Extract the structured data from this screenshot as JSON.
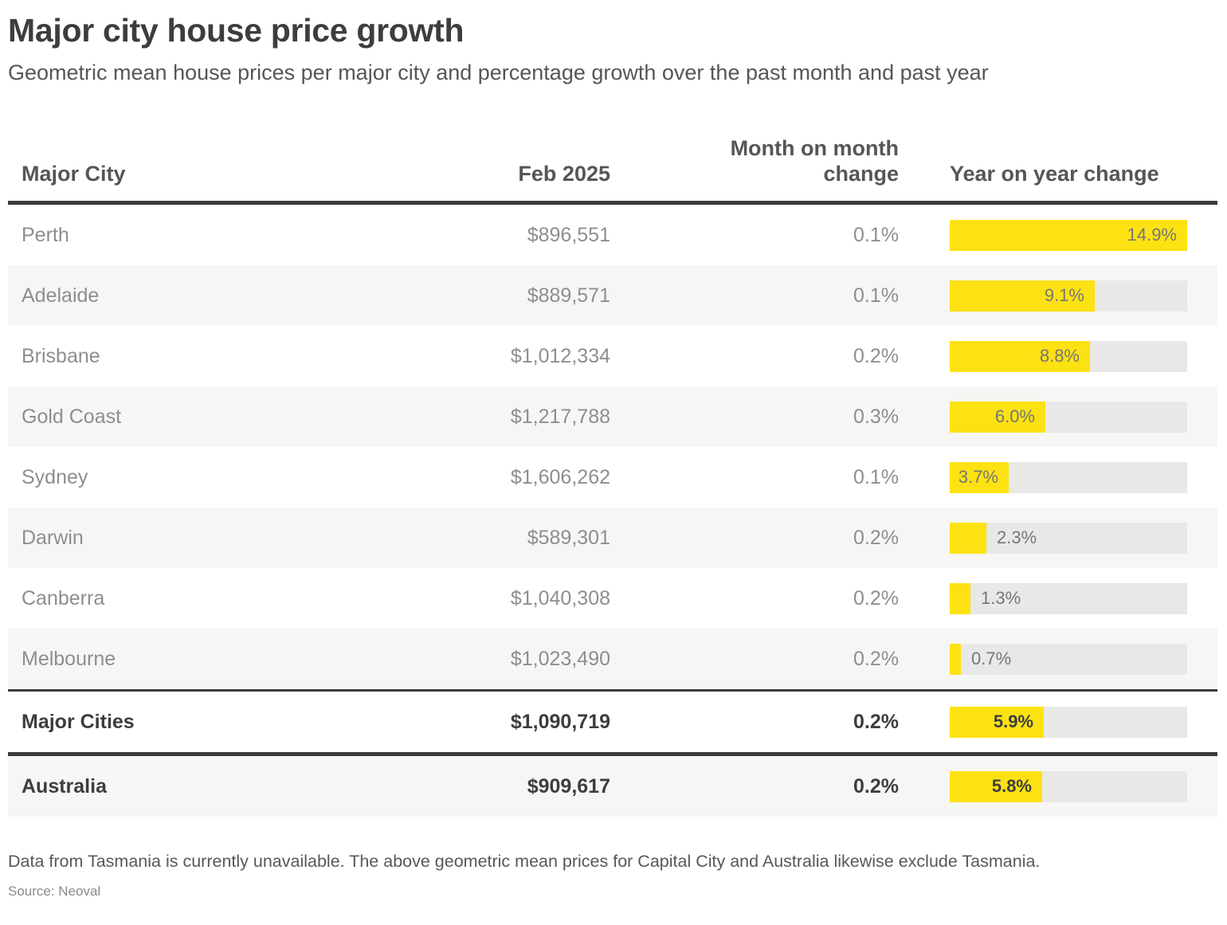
{
  "header": {
    "title": "Major city house price growth",
    "subtitle": "Geometric mean house prices per major city and percentage growth over the past month and past year"
  },
  "columns": {
    "city": "Major City",
    "price": "Feb 2025",
    "mom": "Month on month\nchange",
    "yoy": "Year on year change"
  },
  "table": {
    "yoy_axis_max": 14.9,
    "rows": [
      {
        "city": "Perth",
        "price": "$896,551",
        "mom": "0.1%",
        "yoy_pct": 14.9,
        "yoy_display": "14.9%",
        "yoy_label_position": "inside",
        "emphasis": false,
        "rule_above": "none"
      },
      {
        "city": "Adelaide",
        "price": "$889,571",
        "mom": "0.1%",
        "yoy_pct": 9.1,
        "yoy_display": "9.1%",
        "yoy_label_position": "inside",
        "emphasis": false,
        "rule_above": "none"
      },
      {
        "city": "Brisbane",
        "price": "$1,012,334",
        "mom": "0.2%",
        "yoy_pct": 8.8,
        "yoy_display": "8.8%",
        "yoy_label_position": "inside",
        "emphasis": false,
        "rule_above": "none"
      },
      {
        "city": "Gold Coast",
        "price": "$1,217,788",
        "mom": "0.3%",
        "yoy_pct": 6.0,
        "yoy_display": "6.0%",
        "yoy_label_position": "inside",
        "emphasis": false,
        "rule_above": "none"
      },
      {
        "city": "Sydney",
        "price": "$1,606,262",
        "mom": "0.1%",
        "yoy_pct": 3.7,
        "yoy_display": "3.7%",
        "yoy_label_position": "inside",
        "emphasis": false,
        "rule_above": "none"
      },
      {
        "city": "Darwin",
        "price": "$589,301",
        "mom": "0.2%",
        "yoy_pct": 2.3,
        "yoy_display": "2.3%",
        "yoy_label_position": "outside",
        "emphasis": false,
        "rule_above": "none"
      },
      {
        "city": "Canberra",
        "price": "$1,040,308",
        "mom": "0.2%",
        "yoy_pct": 1.3,
        "yoy_display": "1.3%",
        "yoy_label_position": "outside",
        "emphasis": false,
        "rule_above": "none"
      },
      {
        "city": "Melbourne",
        "price": "$1,023,490",
        "mom": "0.2%",
        "yoy_pct": 0.7,
        "yoy_display": "0.7%",
        "yoy_label_position": "outside",
        "emphasis": false,
        "rule_above": "none"
      },
      {
        "city": "Major Cities",
        "price": "$1,090,719",
        "mom": "0.2%",
        "yoy_pct": 5.9,
        "yoy_display": "5.9%",
        "yoy_label_position": "inside",
        "emphasis": true,
        "rule_above": "thin"
      },
      {
        "city": "Australia",
        "price": "$909,617",
        "mom": "0.2%",
        "yoy_pct": 5.8,
        "yoy_display": "5.8%",
        "yoy_label_position": "inside",
        "emphasis": true,
        "rule_above": "thick"
      }
    ]
  },
  "chart_data": {
    "type": "bar",
    "title": "Major city house price growth",
    "categories": [
      "Perth",
      "Adelaide",
      "Brisbane",
      "Gold Coast",
      "Sydney",
      "Darwin",
      "Canberra",
      "Melbourne",
      "Major Cities",
      "Australia"
    ],
    "series": [
      {
        "name": "Feb 2025 geometric mean price ($)",
        "values": [
          896551,
          889571,
          1012334,
          1217788,
          1606262,
          589301,
          1040308,
          1023490,
          1090719,
          909617
        ]
      },
      {
        "name": "Month on month change (%)",
        "values": [
          0.1,
          0.1,
          0.2,
          0.3,
          0.1,
          0.2,
          0.2,
          0.2,
          0.2,
          0.2
        ]
      },
      {
        "name": "Year on year change (%)",
        "values": [
          14.9,
          9.1,
          8.8,
          6.0,
          3.7,
          2.3,
          1.3,
          0.7,
          5.9,
          5.8
        ]
      }
    ],
    "bar_series_shown_as_bars": "Year on year change (%)",
    "xlim": [
      0,
      14.9
    ],
    "orientation": "horizontal",
    "grid": false,
    "legend_position": "none"
  },
  "footer": {
    "footnote": "Data from Tasmania is currently unavailable. The above geometric mean prices for Capital City and Australia likewise exclude Tasmania.",
    "source": "Source: Neoval"
  },
  "colors": {
    "bar_yellow": "#FCE213",
    "bar_track": "#E8E8E7",
    "alt_row_bg": "#F6F6F5",
    "rule_dark": "#3B3B3B",
    "ink_dark": "#3D3D3D",
    "ink_mid": "#565656",
    "ink_light": "#8E8E8E"
  }
}
